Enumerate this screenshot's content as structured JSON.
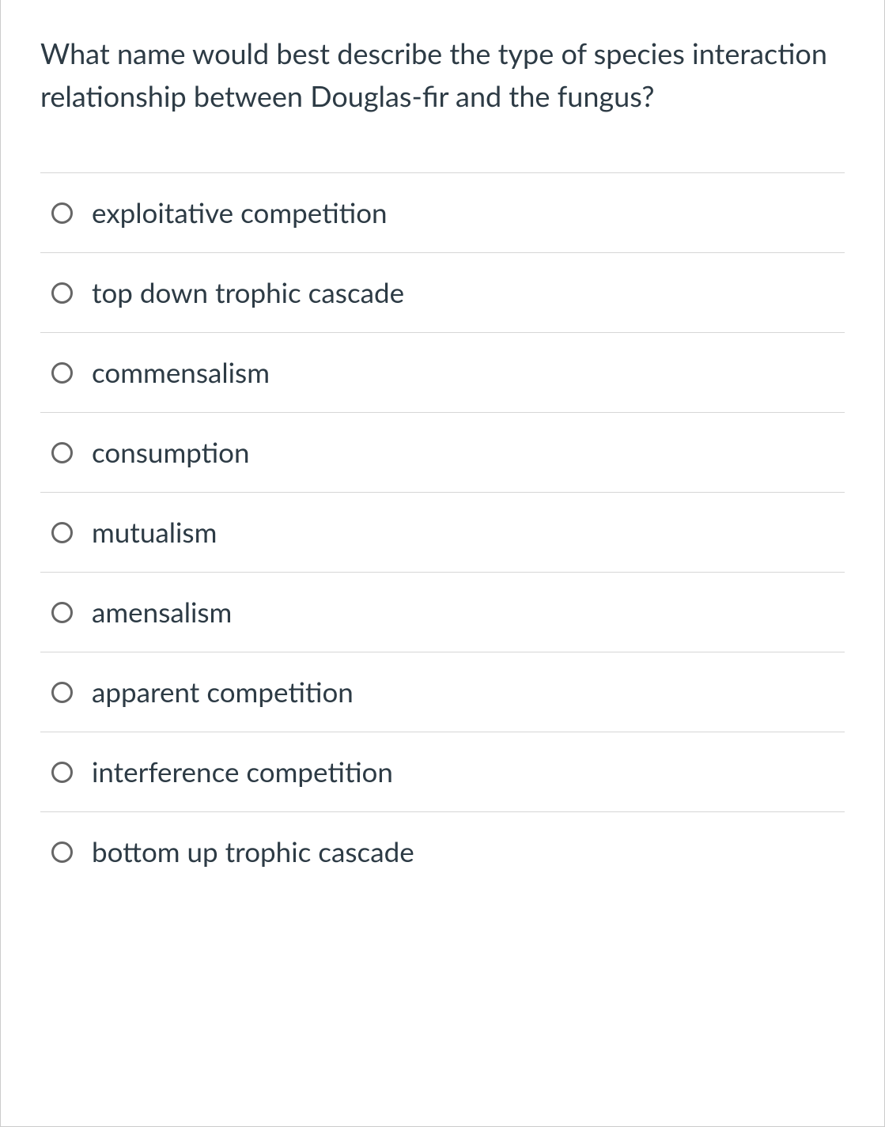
{
  "question": {
    "text": "What name would best describe the type of species interaction relationship between Douglas-fir and the fungus?"
  },
  "options": [
    {
      "label": "exploitative competition"
    },
    {
      "label": "top down trophic cascade"
    },
    {
      "label": "commensalism"
    },
    {
      "label": "consumption"
    },
    {
      "label": "mutualism"
    },
    {
      "label": "amensalism"
    },
    {
      "label": "apparent competition"
    },
    {
      "label": "interference competition"
    },
    {
      "label": "bottom up trophic cascade"
    }
  ],
  "colors": {
    "text": "#2d3b45",
    "border": "#d6d6d6",
    "container_border": "#cccccc",
    "radio_border": "#666666",
    "background": "#ffffff"
  }
}
